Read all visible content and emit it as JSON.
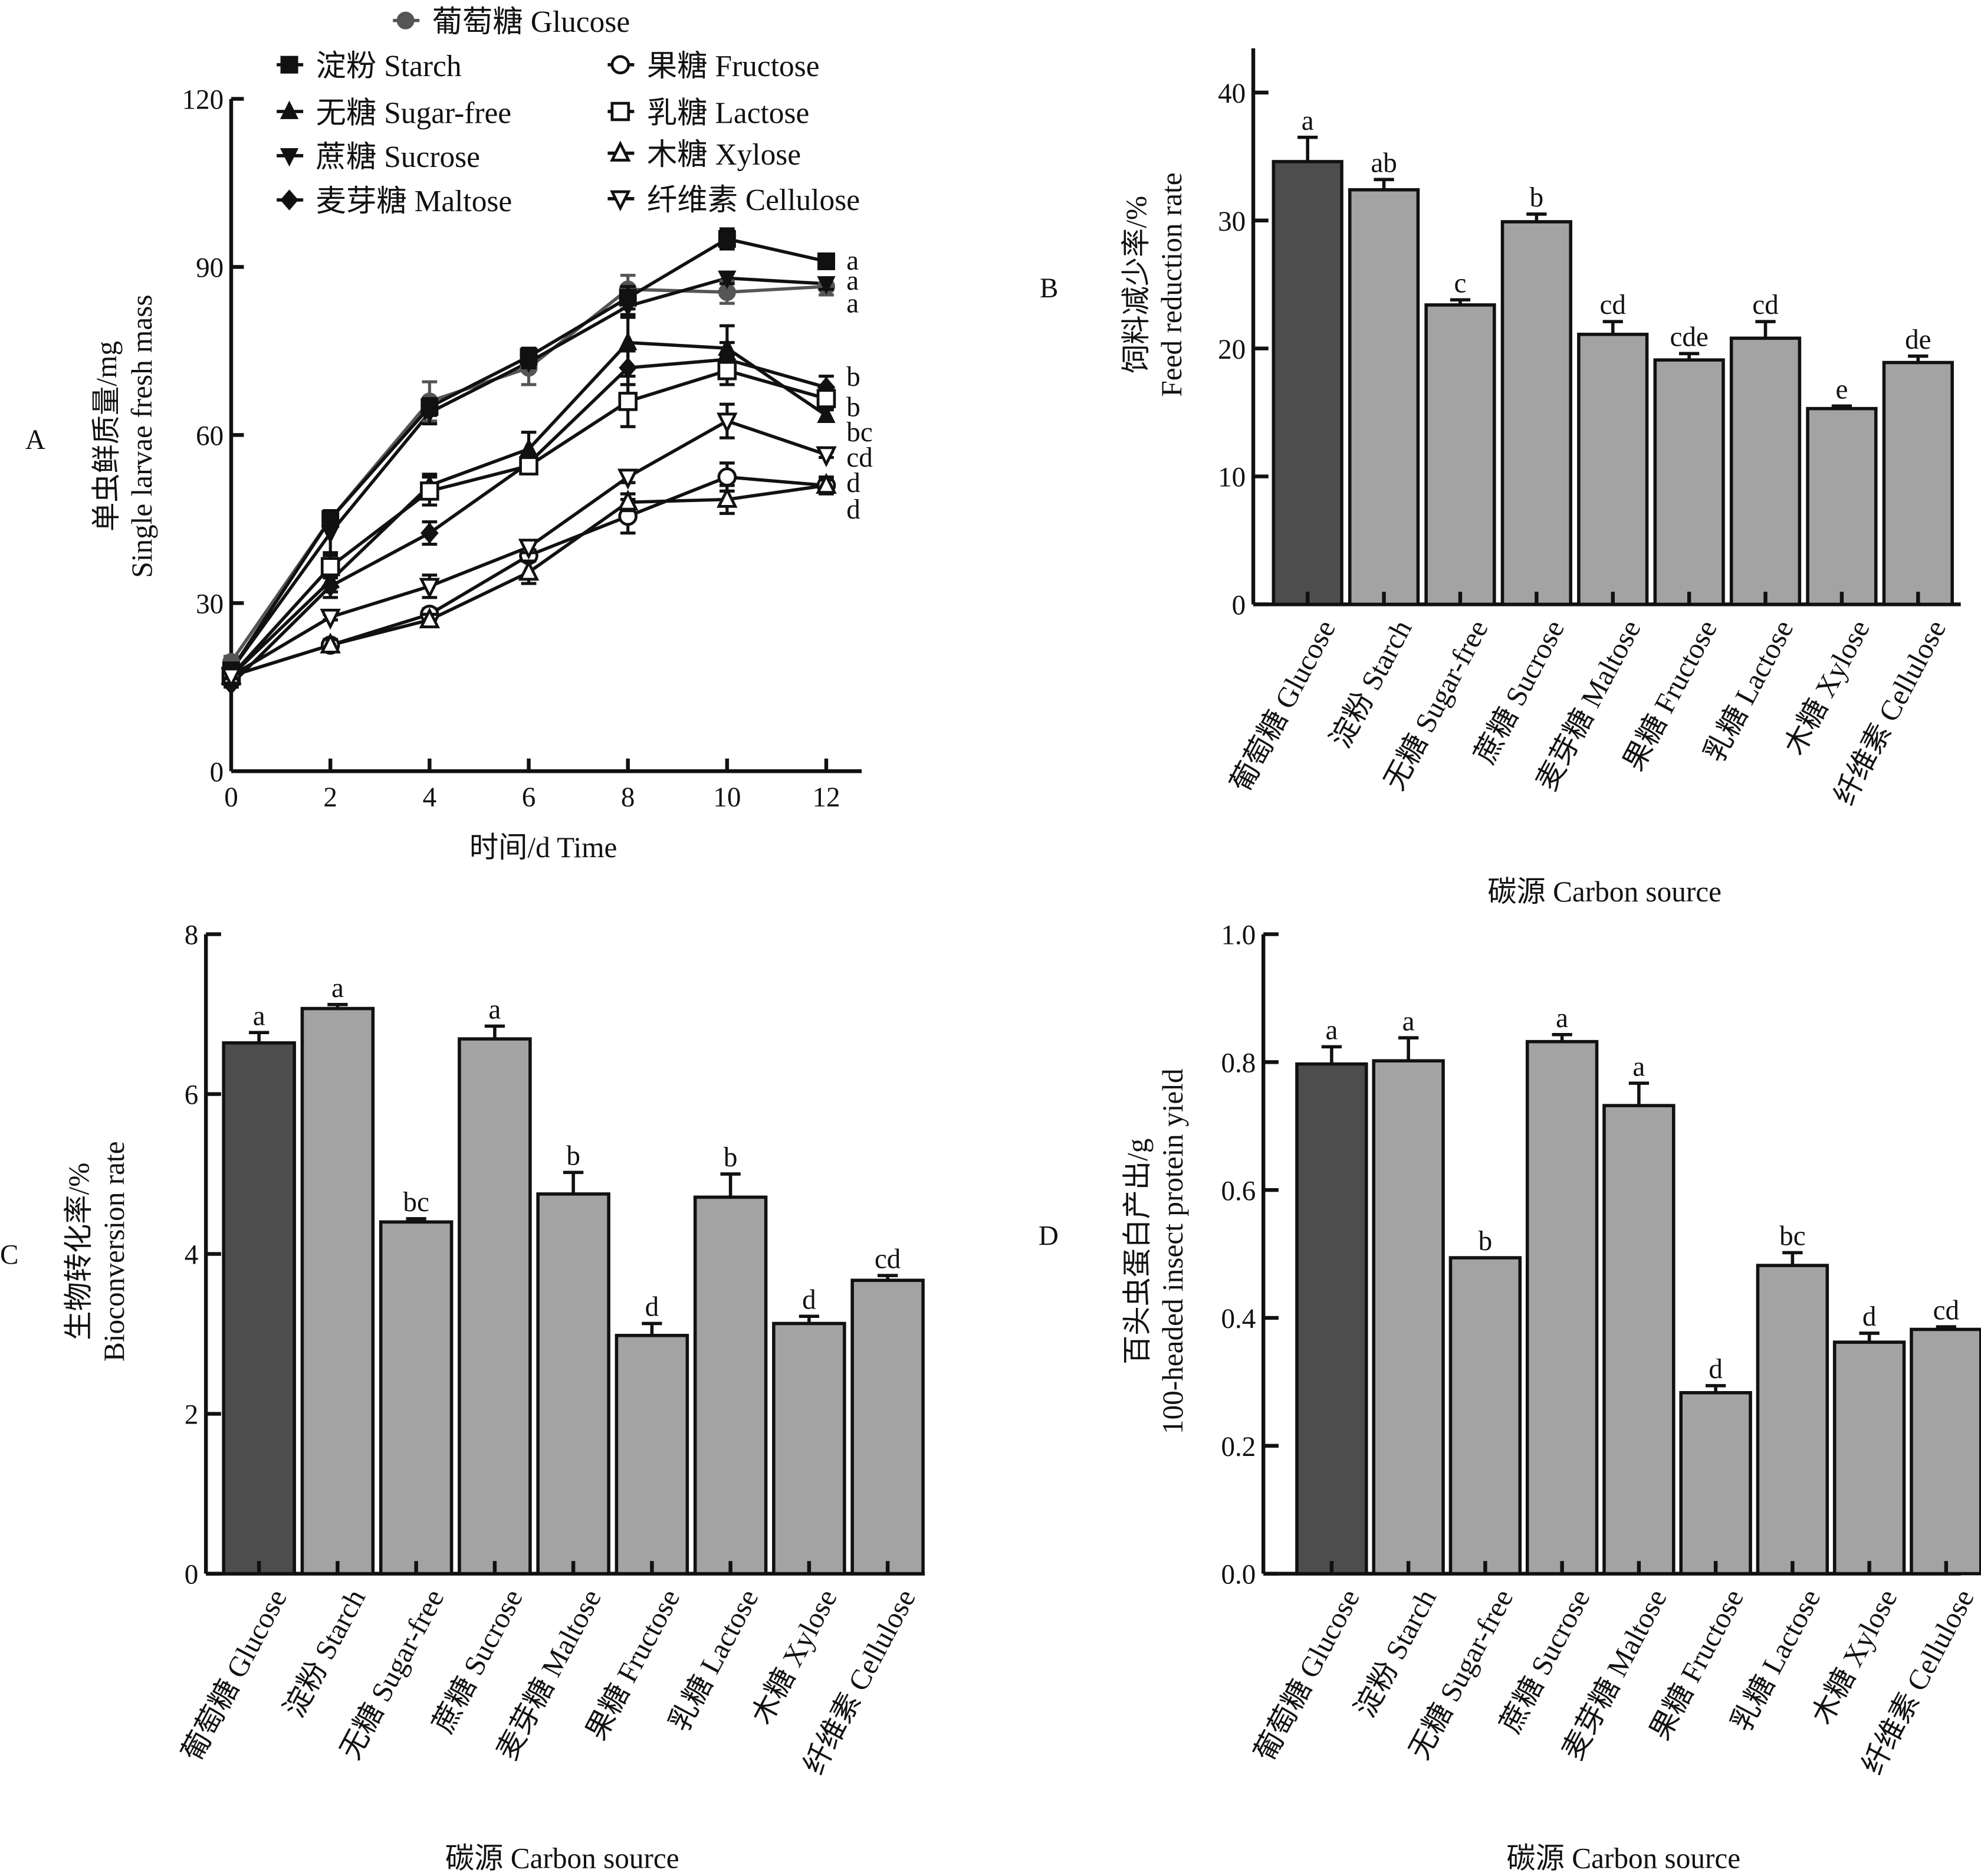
{
  "figure": {
    "panel_labels": [
      "A",
      "B",
      "C",
      "D"
    ]
  },
  "colors": {
    "glucose_bar": "#4d4d4d",
    "other_bar": "#a3a3a3",
    "glucose_line": "#555555",
    "line": "#111111"
  },
  "chart_data": [
    {
      "panel": "A",
      "type": "line",
      "xlabel": "时间/d Time",
      "ylabel_cn": "单虫鲜质量/mg",
      "ylabel_en": "Single larvae fresh mass",
      "x": [
        0,
        2,
        4,
        6,
        8,
        10,
        12
      ],
      "x_ticks": [
        "0",
        "2",
        "4",
        "6",
        "8",
        "10",
        "12"
      ],
      "ylim": [
        0,
        120
      ],
      "y_ticks": [
        "0",
        "30",
        "60",
        "90",
        "120"
      ],
      "grid": false,
      "legend_position": "top",
      "series": [
        {
          "name": "葡萄糖 Glucose",
          "marker": "filled-circle",
          "values": [
            19.5,
            45,
            66,
            72,
            86,
            85.5,
            86.5
          ],
          "errors": [
            1,
            1.5,
            3.5,
            3,
            2.5,
            2,
            1.5
          ],
          "significance": "a"
        },
        {
          "name": "淀粉 Starch",
          "marker": "filled-square",
          "values": [
            18,
            45,
            65,
            74,
            84.5,
            95,
            91
          ],
          "errors": [
            1,
            1.5,
            1.5,
            1.5,
            2,
            1.8,
            1
          ],
          "significance": "a"
        },
        {
          "name": "无糖 Sugar-free",
          "marker": "filled-triangle-up",
          "values": [
            17,
            34,
            51,
            57.5,
            76.5,
            75.5,
            63.5
          ],
          "errors": [
            1,
            2,
            2,
            3,
            4.5,
            4,
            1
          ],
          "significance": "bc"
        },
        {
          "name": "蔗糖 Sucrose",
          "marker": "filled-triangle-down",
          "values": [
            18,
            42.5,
            64,
            73,
            83,
            88,
            87
          ],
          "errors": [
            1,
            3.5,
            2,
            1,
            1.5,
            1,
            1
          ],
          "significance": "a"
        },
        {
          "name": "麦芽糖 Maltose",
          "marker": "filled-diamond",
          "values": [
            15.5,
            33,
            42.5,
            55,
            72,
            73.5,
            68.5
          ],
          "errors": [
            0.5,
            2,
            2,
            1.5,
            3,
            3,
            2
          ],
          "significance": "b"
        },
        {
          "name": "果糖 Fructose",
          "marker": "open-circle",
          "values": [
            17,
            22.5,
            28,
            38.5,
            45.5,
            52.5,
            51
          ],
          "errors": [
            0.5,
            1,
            1,
            1,
            3,
            2.5,
            1.5
          ],
          "significance": "d"
        },
        {
          "name": "乳糖 Lactose",
          "marker": "open-square",
          "values": [
            17,
            36.5,
            50,
            54.5,
            66,
            71.5,
            66.5
          ],
          "errors": [
            0.5,
            2,
            2.5,
            1,
            4.5,
            2.5,
            1.5
          ],
          "significance": "b"
        },
        {
          "name": "木糖 Xylose",
          "marker": "open-triangle-up",
          "values": [
            17,
            22.5,
            27,
            35.5,
            48,
            48.5,
            51
          ],
          "errors": [
            0.5,
            1,
            1,
            2,
            1.5,
            2.5,
            1
          ],
          "significance": "d"
        },
        {
          "name": "纤维素 Cellulose",
          "marker": "open-triangle-down",
          "values": [
            17,
            27.5,
            33,
            40,
            52.5,
            62.5,
            56.5
          ],
          "errors": [
            0.5,
            0.5,
            2,
            1,
            1,
            3,
            0.5
          ],
          "significance": "cd"
        }
      ]
    },
    {
      "panel": "B",
      "type": "bar",
      "ylabel_cn": "饲料减少率/%",
      "ylabel_en": "Feed reduction rate",
      "xlabel": "碳源 Carbon source",
      "ylim": [
        0,
        43
      ],
      "y_ticks": [
        "0",
        "10",
        "20",
        "30",
        "40"
      ],
      "categories": [
        "葡萄糖 Glucose",
        "淀粉 Starch",
        "无糖 Sugar-free",
        "蔗糖 Sucrose",
        "麦芽糖 Maltose",
        "果糖 Fructose",
        "乳糖 Lactose",
        "木糖 Xylose",
        "纤维素 Cellulose"
      ],
      "values": [
        34.6,
        32.4,
        23.4,
        29.9,
        21.1,
        19.1,
        20.8,
        15.3,
        18.9
      ],
      "errors": [
        1.9,
        0.8,
        0.4,
        0.6,
        1.0,
        0.5,
        1.3,
        0.2,
        0.5
      ],
      "significance": [
        "a",
        "ab",
        "c",
        "b",
        "cd",
        "cde",
        "cd",
        "e",
        "de"
      ]
    },
    {
      "panel": "C",
      "type": "bar",
      "ylabel_cn": "生物转化率/%",
      "ylabel_en": "Bioconversion rate",
      "xlabel": "碳源 Carbon source",
      "ylim": [
        0,
        8
      ],
      "y_ticks": [
        "0",
        "2",
        "4",
        "6",
        "8"
      ],
      "categories": [
        "葡萄糖 Glucose",
        "淀粉 Starch",
        "无糖 Sugar-free",
        "蔗糖 Sucrose",
        "麦芽糖 Maltose",
        "果糖 Fructose",
        "乳糖 Lactose",
        "木糖 Xylose",
        "纤维素 Cellulose"
      ],
      "values": [
        6.64,
        7.07,
        4.4,
        6.69,
        4.75,
        2.98,
        4.71,
        3.13,
        3.67
      ],
      "errors": [
        0.13,
        0.05,
        0.04,
        0.16,
        0.27,
        0.15,
        0.29,
        0.09,
        0.06
      ],
      "significance": [
        "a",
        "a",
        "bc",
        "a",
        "b",
        "d",
        "b",
        "d",
        "cd"
      ]
    },
    {
      "panel": "D",
      "type": "bar",
      "ylabel_cn": "百头虫蛋白产出/g",
      "ylabel_en": "100-headed insect protein yield",
      "xlabel": "碳源 Carbon source",
      "ylim": [
        0,
        1.0
      ],
      "y_ticks": [
        "0.0",
        "0.2",
        "0.4",
        "0.6",
        "0.8",
        "1.0"
      ],
      "categories": [
        "葡萄糖 Glucose",
        "淀粉 Starch",
        "无糖 Sugar-free",
        "蔗糖 Sucrose",
        "麦芽糖 Maltose",
        "果糖 Fructose",
        "乳糖 Lactose",
        "木糖 Xylose",
        "纤维素 Cellulose"
      ],
      "values": [
        0.797,
        0.802,
        0.494,
        0.832,
        0.732,
        0.283,
        0.482,
        0.362,
        0.382
      ],
      "errors": [
        0.027,
        0.036,
        0.0,
        0.011,
        0.035,
        0.011,
        0.02,
        0.014,
        0.004
      ],
      "significance": [
        "a",
        "a",
        "b",
        "a",
        "a",
        "d",
        "bc",
        "d",
        "cd"
      ]
    }
  ]
}
